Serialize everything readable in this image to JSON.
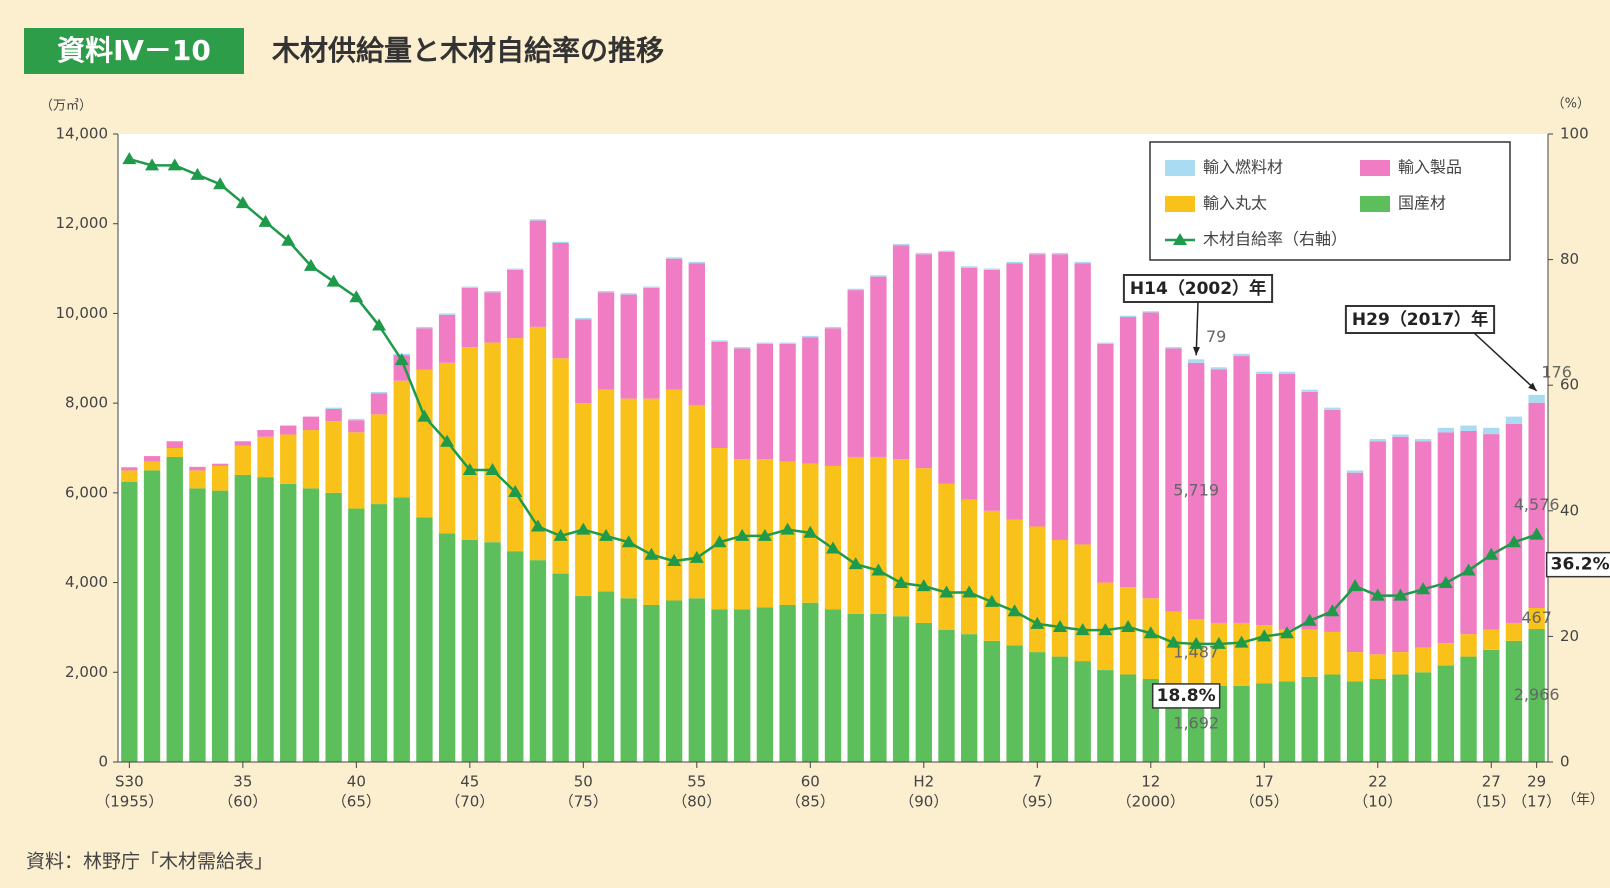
{
  "header": {
    "badge": "資料Ⅳ－10",
    "title": "木材供給量と木材自給率の推移"
  },
  "chart_data": {
    "type": "stacked_bar_line",
    "y_unit": "（万㎥）",
    "y2_unit": "（%）",
    "x_unit": "（年）",
    "categories": [
      "S30",
      null,
      null,
      null,
      null,
      "35",
      null,
      null,
      null,
      null,
      "40",
      null,
      null,
      null,
      null,
      "45",
      null,
      null,
      null,
      null,
      "50",
      null,
      null,
      null,
      null,
      "55",
      null,
      null,
      null,
      null,
      "60",
      null,
      null,
      null,
      null,
      "H2",
      null,
      null,
      null,
      null,
      "7",
      null,
      null,
      null,
      null,
      "12",
      null,
      null,
      null,
      null,
      "17",
      null,
      null,
      null,
      null,
      "22",
      null,
      null,
      null,
      null,
      "27",
      null,
      "29"
    ],
    "category_sublabels": [
      "（1955）",
      null,
      null,
      null,
      null,
      "（60）",
      null,
      null,
      null,
      null,
      "（65）",
      null,
      null,
      null,
      null,
      "（70）",
      null,
      null,
      null,
      null,
      "（75）",
      null,
      null,
      null,
      null,
      "（80）",
      null,
      null,
      null,
      null,
      "（85）",
      null,
      null,
      null,
      null,
      "（90）",
      null,
      null,
      null,
      null,
      "（95）",
      null,
      null,
      null,
      null,
      "（2000）",
      null,
      null,
      null,
      null,
      "（05）",
      null,
      null,
      null,
      null,
      "（10）",
      null,
      null,
      null,
      null,
      "（15）",
      null,
      "（17）"
    ],
    "ylim": [
      0,
      14000
    ],
    "yticks": [
      0,
      {
        "value": 2000,
        "label": "2,000"
      },
      {
        "value": 4000,
        "label": "4,000"
      },
      {
        "value": 6000,
        "label": "6,000"
      },
      {
        "value": 8000,
        "label": "8,000"
      },
      {
        "value": 10000,
        "label": "10,000"
      },
      {
        "value": 12000,
        "label": "12,000"
      },
      {
        "value": 14000,
        "label": "14,000"
      }
    ],
    "y2lim": [
      0,
      100
    ],
    "y2ticks": [
      0,
      20,
      40,
      60,
      80,
      100
    ],
    "series": [
      {
        "name": "国産材",
        "color": "#5cbf5c",
        "values": [
          6250,
          6500,
          6800,
          6100,
          6050,
          6400,
          6350,
          6200,
          6100,
          6000,
          5650,
          5750,
          5900,
          5450,
          5100,
          4950,
          4900,
          4700,
          4500,
          4200,
          3700,
          3800,
          3650,
          3500,
          3600,
          3650,
          3400,
          3400,
          3450,
          3500,
          3550,
          3400,
          3300,
          3300,
          3250,
          3100,
          2950,
          2850,
          2700,
          2600,
          2450,
          2350,
          2250,
          2050,
          1950,
          1850,
          1750,
          1692,
          1700,
          1700,
          1750,
          1800,
          1900,
          1950,
          1800,
          1850,
          1950,
          2000,
          2150,
          2350,
          2500,
          2700,
          2966
        ],
        "value_labels": [
          null,
          null,
          null,
          null,
          null,
          null,
          null,
          null,
          null,
          null,
          null,
          null,
          null,
          null,
          null,
          null,
          null,
          null,
          null,
          null,
          null,
          null,
          null,
          null,
          null,
          null,
          null,
          null,
          null,
          null,
          null,
          null,
          null,
          null,
          null,
          null,
          null,
          null,
          null,
          null,
          null,
          null,
          null,
          null,
          null,
          null,
          null,
          "1,692",
          null,
          null,
          null,
          null,
          null,
          null,
          null,
          null,
          null,
          null,
          null,
          null,
          null,
          null,
          "2,966"
        ]
      },
      {
        "name": "輸入丸太",
        "color": "#f8c21a",
        "values": [
          250,
          200,
          200,
          400,
          550,
          650,
          900,
          1100,
          1300,
          1600,
          1700,
          2000,
          2600,
          3300,
          3800,
          4300,
          4450,
          4750,
          5200,
          4800,
          4300,
          4500,
          4450,
          4600,
          4700,
          4300,
          3600,
          3350,
          3300,
          3200,
          3100,
          3200,
          3500,
          3500,
          3500,
          3450,
          3250,
          3000,
          2900,
          2800,
          2800,
          2600,
          2600,
          1950,
          1950,
          1800,
          1600,
          1487,
          1400,
          1400,
          1300,
          1150,
          1050,
          950,
          650,
          550,
          500,
          550,
          500,
          500,
          450,
          400,
          467
        ],
        "value_labels": [
          null,
          null,
          null,
          null,
          null,
          null,
          null,
          null,
          null,
          null,
          null,
          null,
          null,
          null,
          null,
          null,
          null,
          null,
          null,
          null,
          null,
          null,
          null,
          null,
          null,
          null,
          null,
          null,
          null,
          null,
          null,
          null,
          null,
          null,
          null,
          null,
          null,
          null,
          null,
          null,
          null,
          null,
          null,
          null,
          null,
          null,
          null,
          "1,487",
          null,
          null,
          null,
          null,
          null,
          null,
          null,
          null,
          null,
          null,
          null,
          null,
          null,
          null,
          "467"
        ]
      },
      {
        "name": "輸入製品",
        "color": "#f07cc4",
        "values": [
          70,
          120,
          150,
          80,
          50,
          100,
          150,
          200,
          300,
          270,
          270,
          470,
          570,
          920,
          1070,
          1320,
          1120,
          1520,
          2370,
          2570,
          1870,
          2170,
          2320,
          2470,
          2920,
          3170,
          2370,
          2470,
          2570,
          2620,
          2820,
          3070,
          3720,
          4020,
          4770,
          4770,
          5170,
          5170,
          5370,
          5720,
          6070,
          6370,
          6270,
          5320,
          6020,
          6370,
          5870,
          5719,
          5650,
          5950,
          5600,
          5700,
          5300,
          4950,
          4000,
          4750,
          4800,
          4600,
          4700,
          4530,
          4360,
          4440,
          4576
        ],
        "value_labels": [
          null,
          null,
          null,
          null,
          null,
          null,
          null,
          null,
          null,
          null,
          null,
          null,
          null,
          null,
          null,
          null,
          null,
          null,
          null,
          null,
          null,
          null,
          null,
          null,
          null,
          null,
          null,
          null,
          null,
          null,
          null,
          null,
          null,
          null,
          null,
          null,
          null,
          null,
          null,
          null,
          null,
          null,
          null,
          null,
          null,
          null,
          null,
          "5,719",
          null,
          null,
          null,
          null,
          null,
          null,
          null,
          null,
          null,
          null,
          null,
          null,
          null,
          null,
          "4,576"
        ]
      },
      {
        "name": "輸入燃料材",
        "color": "#a9dcf3",
        "values": [
          0,
          0,
          0,
          0,
          0,
          0,
          0,
          0,
          0,
          30,
          30,
          30,
          30,
          30,
          30,
          30,
          30,
          30,
          30,
          30,
          30,
          30,
          30,
          30,
          30,
          30,
          30,
          30,
          30,
          30,
          30,
          30,
          30,
          30,
          30,
          30,
          30,
          30,
          30,
          30,
          30,
          30,
          30,
          30,
          30,
          30,
          30,
          79,
          50,
          50,
          50,
          50,
          50,
          50,
          50,
          50,
          50,
          50,
          100,
          120,
          140,
          160,
          176
        ],
        "value_labels": [
          null,
          null,
          null,
          null,
          null,
          null,
          null,
          null,
          null,
          null,
          null,
          null,
          null,
          null,
          null,
          null,
          null,
          null,
          null,
          null,
          null,
          null,
          null,
          null,
          null,
          null,
          null,
          null,
          null,
          null,
          null,
          null,
          null,
          null,
          null,
          null,
          null,
          null,
          null,
          null,
          null,
          null,
          null,
          null,
          null,
          null,
          null,
          "79",
          null,
          null,
          null,
          null,
          null,
          null,
          null,
          null,
          null,
          null,
          null,
          null,
          null,
          null,
          "176"
        ]
      },
      {
        "name": "木材自給率（右軸）",
        "color": "#1e9a4a",
        "type": "line",
        "axis": "y2",
        "values": [
          96,
          95,
          95,
          93.5,
          92,
          89,
          86,
          83,
          79,
          76.5,
          74,
          69.5,
          64,
          55,
          51,
          46.5,
          46.5,
          43,
          37.5,
          36,
          37,
          36,
          35,
          33,
          32,
          32.5,
          35,
          36,
          36,
          37,
          36.5,
          34,
          31.5,
          30.5,
          28.5,
          28,
          27,
          27,
          25.5,
          24,
          22,
          21.5,
          21,
          21,
          21.5,
          20.5,
          19,
          18.8,
          18.8,
          19,
          20,
          20.5,
          22.5,
          24,
          28,
          26.5,
          26.5,
          27.5,
          28.5,
          30.5,
          33,
          35,
          36.2
        ],
        "value_labels": [
          null,
          null,
          null,
          null,
          null,
          null,
          null,
          null,
          null,
          null,
          null,
          null,
          null,
          null,
          null,
          null,
          null,
          null,
          null,
          null,
          null,
          null,
          null,
          null,
          null,
          null,
          null,
          null,
          null,
          null,
          null,
          null,
          null,
          null,
          null,
          null,
          null,
          null,
          null,
          null,
          null,
          null,
          null,
          null,
          null,
          null,
          null,
          "18.8%",
          null,
          null,
          null,
          null,
          null,
          null,
          null,
          null,
          null,
          null,
          null,
          null,
          null,
          null,
          "36.2%"
        ]
      }
    ],
    "annotations": [
      {
        "text": "H14（2002）年"
      },
      {
        "text": "H29（2017）年"
      }
    ],
    "source": "資料：林野庁「木材需給表」"
  }
}
